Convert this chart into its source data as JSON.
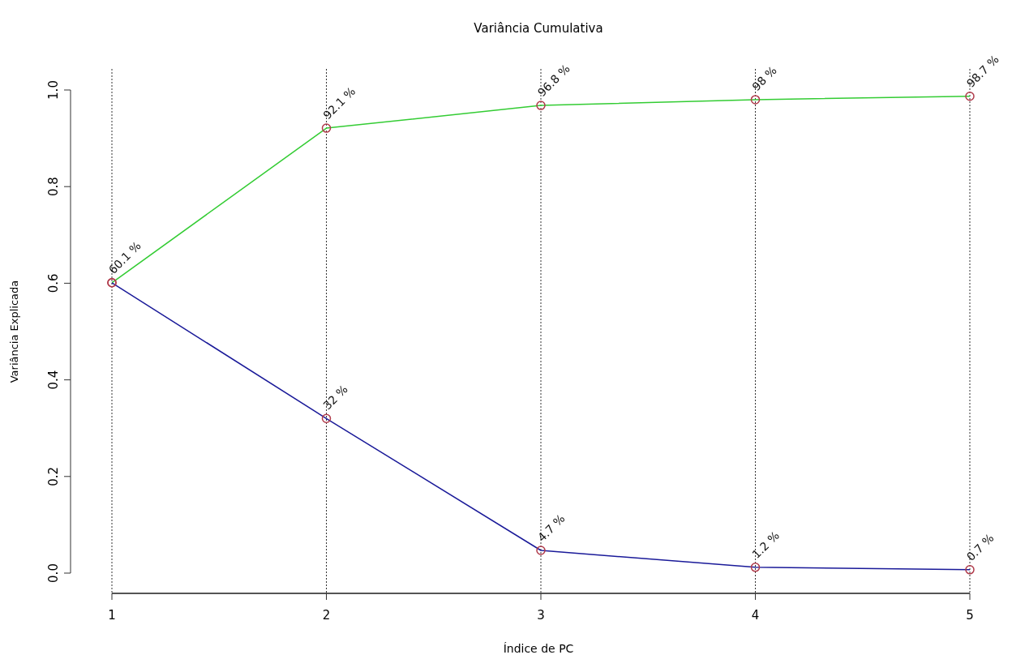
{
  "chart_data": {
    "type": "line",
    "title": "Variância Cumulativa",
    "xlabel": "Índice de PC",
    "ylabel": "Variância Explicada",
    "x": [
      1,
      2,
      3,
      4,
      5
    ],
    "xlim": [
      1,
      5
    ],
    "xticks": [
      1,
      2,
      3,
      4,
      5
    ],
    "ylim": [
      0,
      1
    ],
    "yticks": [
      {
        "value": 0,
        "label": "0.0"
      },
      {
        "value": 0.2,
        "label": "0.2"
      },
      {
        "value": 0.4,
        "label": "0.4"
      },
      {
        "value": 0.6,
        "label": "0.6"
      },
      {
        "value": 0.8,
        "label": "0.8"
      },
      {
        "value": 1,
        "label": "1.0"
      }
    ],
    "grid": "x",
    "marker": "circle",
    "series": [
      {
        "color": "#33cc33",
        "values": [
          0.601,
          0.921,
          0.968,
          0.98,
          0.987
        ],
        "value_labels": [
          "60.1 %",
          "92.1 %",
          "96.8 %",
          "98 %",
          "98.7 %"
        ]
      },
      {
        "color": "#1a1a99",
        "values": [
          0.601,
          0.32,
          0.047,
          0.012,
          0.007
        ],
        "value_labels": [
          null,
          "32 %",
          "4.7 %",
          "1.2 %",
          "0.7 %"
        ]
      }
    ]
  }
}
